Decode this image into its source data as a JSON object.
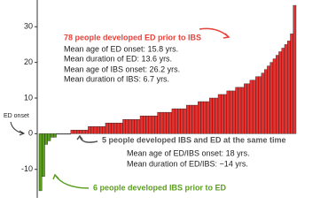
{
  "chart_data": {
    "type": "bar",
    "bars": [
      {
        "color": "#5a9e1e",
        "values": [
          -16,
          -12,
          -3,
          -2,
          -1,
          -1
        ]
      },
      {
        "color": "#888888",
        "values": [
          0,
          0,
          0,
          0,
          0
        ]
      },
      {
        "color": "#e8312f",
        "values": [
          1,
          1,
          1,
          1,
          1,
          1,
          2,
          2,
          2,
          2,
          2,
          2,
          3,
          3,
          3,
          3,
          3,
          3,
          4,
          4,
          4,
          4,
          4,
          4,
          5,
          5,
          5,
          5,
          5,
          5,
          6,
          6,
          6,
          6,
          6,
          7,
          7,
          7,
          7,
          7,
          8,
          8,
          8,
          8,
          9,
          9,
          9,
          9,
          10,
          10,
          10,
          11,
          11,
          11,
          12,
          12,
          12,
          13,
          13,
          13,
          14,
          14,
          15,
          15,
          16,
          16,
          17,
          18,
          19,
          20,
          21,
          22,
          23,
          24,
          25,
          26,
          28,
          36
        ]
      }
    ],
    "ylim": [
      -18,
      37.5
    ],
    "yticks": [
      30,
      20,
      10,
      0,
      -10
    ],
    "annotations": {
      "ed_first": [
        "78 people developed ED prior to IBS",
        "Mean age of ED onset: 15.8 yrs.",
        "Mean duration of ED: 13.6 yrs.",
        "Mean age of IBS onset: 26.2 yrs.",
        "Mean duration of IBS: 6.7 yrs."
      ],
      "same_time": [
        "5 people developed IBS and ED at the same time",
        "Mean age of ED/IBS onset: 18 yrs.",
        "Mean duration of ED/IBS: ~14 yrs."
      ],
      "ibs_first": [
        "6 people developed IBS prior to ED"
      ],
      "ed_onset": "ED onset"
    }
  }
}
